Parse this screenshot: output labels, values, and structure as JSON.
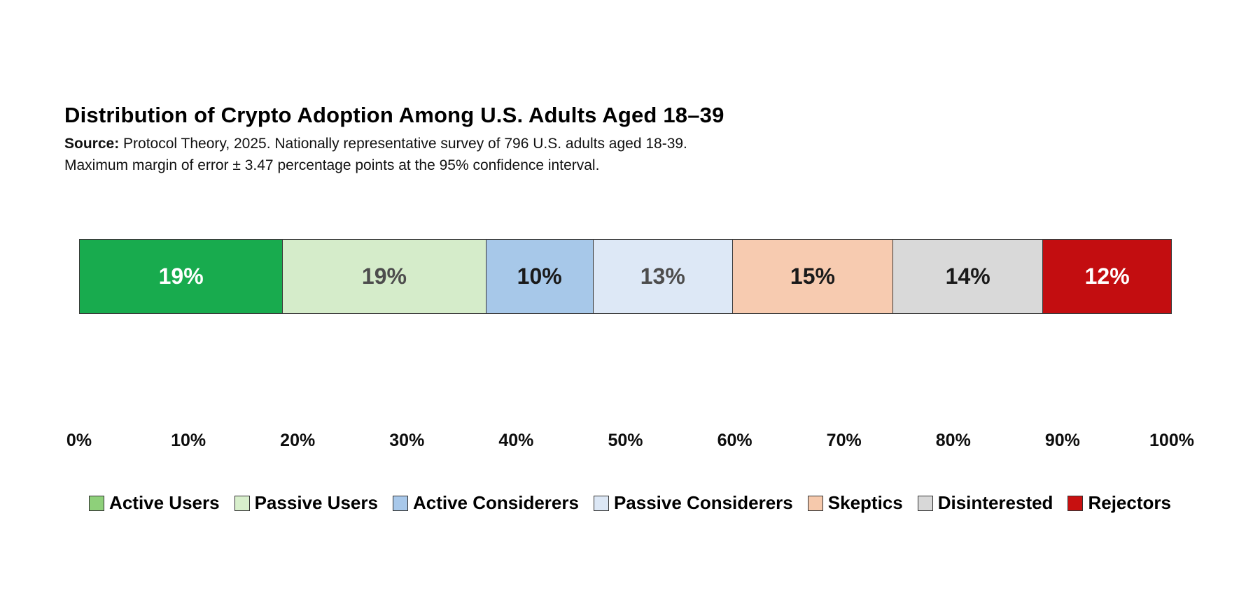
{
  "header": {
    "title": "Distribution of Crypto Adoption Among U.S. Adults Aged 18–39",
    "source_label": "Source:",
    "source_line1": "Protocol Theory, 2025. Nationally representative survey of 796 U.S. adults aged 18-39.",
    "source_line2": "Maximum margin of error ± 3.47 percentage points at the 95% confidence interval."
  },
  "chart_data": {
    "type": "bar",
    "subtype": "single-stacked-horizontal-bar",
    "title": "Distribution of Crypto Adoption Among U.S. Adults Aged 18–39",
    "categories": [
      "Active Users",
      "Passive Users",
      "Active Considerers",
      "Passive Considerers",
      "Skeptics",
      "Disinterested",
      "Rejectors"
    ],
    "values": [
      19,
      19,
      10,
      13,
      15,
      14,
      12
    ],
    "value_labels": [
      "19%",
      "19%",
      "10%",
      "13%",
      "15%",
      "14%",
      "12%"
    ],
    "segment_colors": [
      "#18ab4e",
      "#d5ecca",
      "#a7c8e9",
      "#dde8f6",
      "#f7cbb0",
      "#d9d9d9",
      "#c30d10"
    ],
    "value_label_colors": [
      "#ffffff",
      "#4d4d4d",
      "#1a1a1a",
      "#4d4d4d",
      "#1a1a1a",
      "#1a1a1a",
      "#ffffff"
    ],
    "segment_border_color": "#3a3a3a",
    "xlabel": "",
    "ylabel": "",
    "xlim": [
      0,
      100
    ],
    "x_ticks": [
      "0%",
      "10%",
      "20%",
      "30%",
      "40%",
      "50%",
      "60%",
      "70%",
      "80%",
      "90%",
      "100%"
    ],
    "grid": false,
    "legend": {
      "position": "bottom",
      "swatch_border_color": "#333333",
      "items": [
        {
          "label": "Active Users",
          "color": "#8ed07a"
        },
        {
          "label": "Passive Users",
          "color": "#d8efcc"
        },
        {
          "label": "Active Considerers",
          "color": "#a8c8ea"
        },
        {
          "label": "Passive Considerers",
          "color": "#dce7f5"
        },
        {
          "label": "Skeptics",
          "color": "#f6c9ac"
        },
        {
          "label": "Disinterested",
          "color": "#d8d8d8"
        },
        {
          "label": "Rejectors",
          "color": "#c81010"
        }
      ]
    }
  }
}
